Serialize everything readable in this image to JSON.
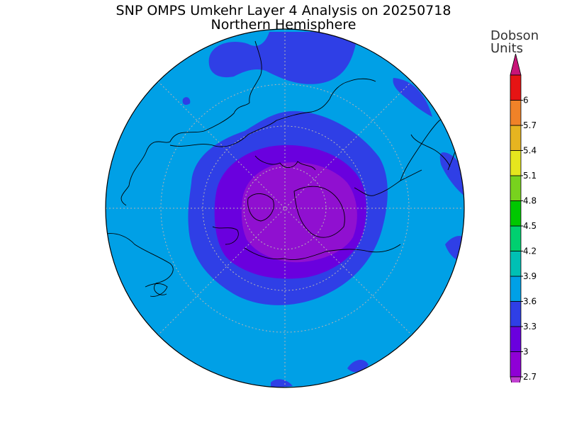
{
  "title": {
    "line1": "SNP OMPS Umkehr Layer 4 Analysis on 20250718",
    "line2": "Northern Hemisphere"
  },
  "colorbar": {
    "units_line1": "Dobson",
    "units_line2": "Units",
    "ticks": [
      "2.7",
      "3",
      "3.3",
      "3.6",
      "3.9",
      "4.2",
      "4.5",
      "4.8",
      "5.1",
      "5.4",
      "5.7",
      "6"
    ],
    "colors": [
      "#8f00d6",
      "#6a00de",
      "#2f3fe6",
      "#00a0e6",
      "#00c0b4",
      "#00d070",
      "#00c800",
      "#78d21e",
      "#e6e61e",
      "#e6b420",
      "#f08228",
      "#e61414"
    ],
    "under_color": "#c040d0",
    "over_color": "#c81478"
  },
  "map": {
    "projection": "north-polar-stereographic",
    "background_level_color": "#00a0e6",
    "level_3_0_to_3_3_color": "#2f3fe6",
    "level_2_7_to_3_0_color": "#6a00de",
    "level_below_2_7_color": "#9010d0",
    "grid_color": "#b4b4b4"
  }
}
